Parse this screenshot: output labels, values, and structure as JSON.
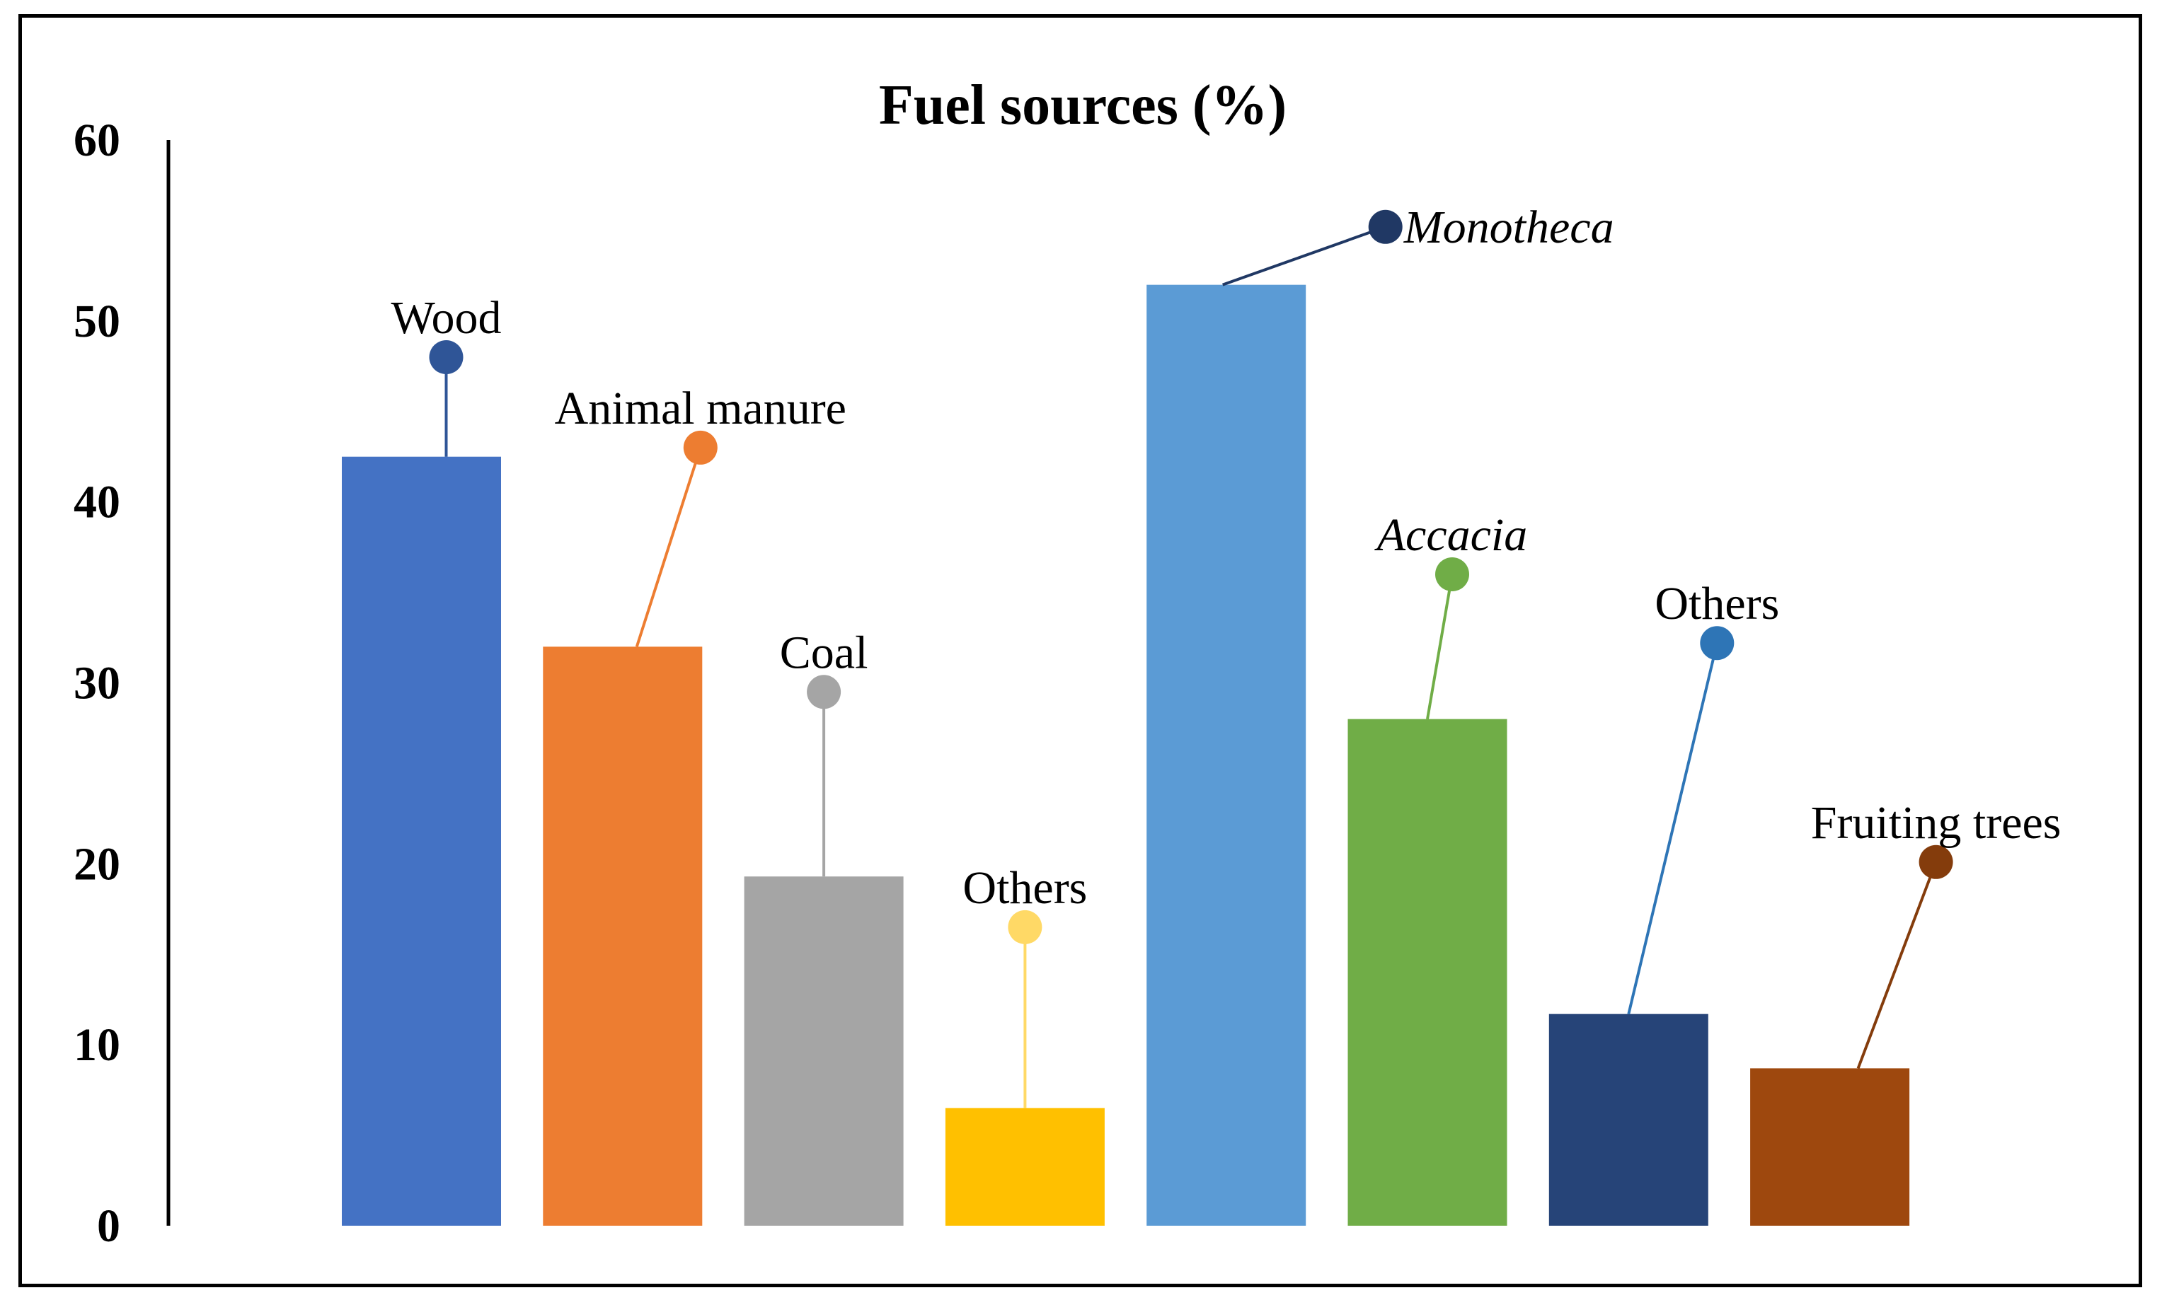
{
  "chart_data": {
    "type": "bar",
    "title": "Fuel sources (%)",
    "xlabel": "",
    "ylabel": "",
    "ylim": [
      0,
      60
    ],
    "yticks": [
      0,
      10,
      20,
      30,
      40,
      50,
      60
    ],
    "grid": false,
    "legend": "none",
    "categories": [
      "Wood",
      "Animal manure",
      "Coal",
      "Others",
      "Monotheca",
      "Accacia",
      "Others",
      "Fruiting trees"
    ],
    "values": [
      42.5,
      32,
      19.3,
      6.5,
      52,
      28,
      11.7,
      8.7
    ],
    "colors": [
      "#4472C4",
      "#ED7D31",
      "#A5A5A5",
      "#FFC000",
      "#5B9BD5",
      "#70AD47",
      "#264478",
      "#9E480E"
    ],
    "leader_colors": [
      "#2F5597",
      "#ED7D31",
      "#A5A5A5",
      "#FFD966",
      "#203864",
      "#70AD47",
      "#2E75B6",
      "#843C0C"
    ],
    "label_anchor_values": [
      48,
      43,
      29.5,
      16.5,
      55.2,
      36,
      32.2,
      20.1
    ],
    "italic": [
      false,
      false,
      false,
      false,
      true,
      true,
      false,
      false
    ]
  }
}
